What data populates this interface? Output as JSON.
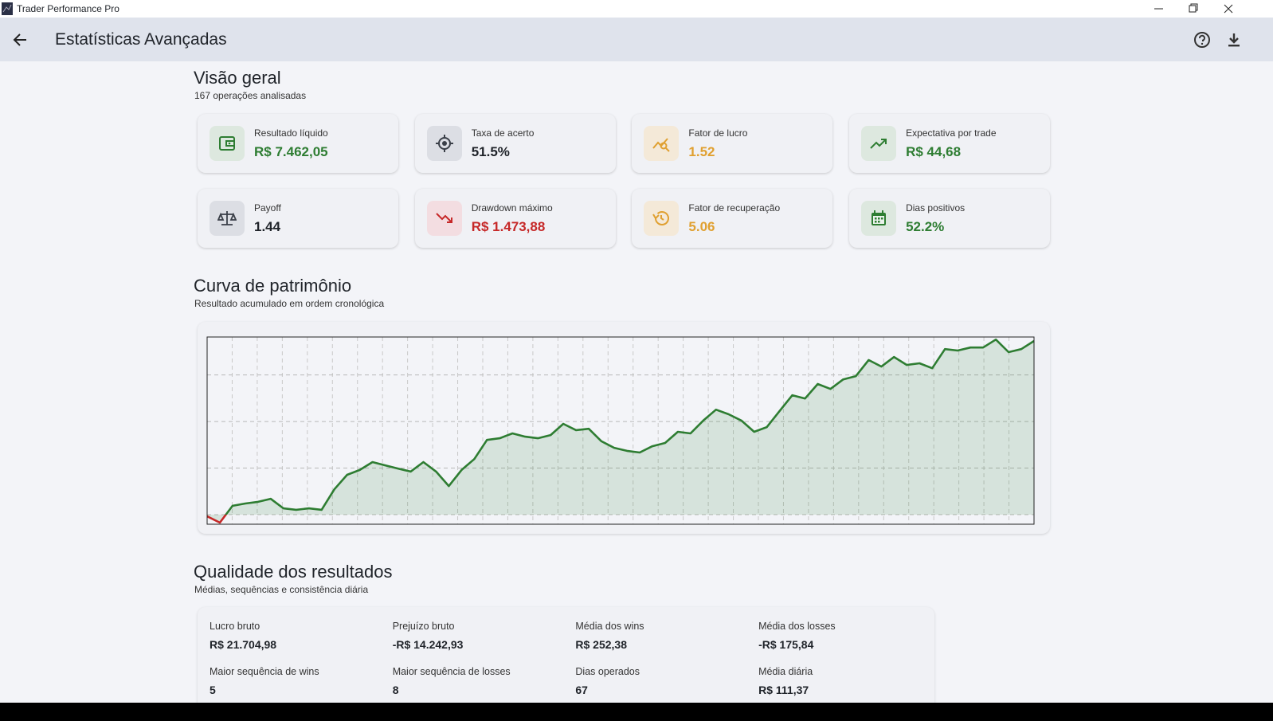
{
  "window": {
    "title": "Trader Performance Pro"
  },
  "appbar": {
    "title": "Estatísticas Avançadas"
  },
  "overview": {
    "title": "Visão geral",
    "subtitle": "167 operações analisadas",
    "cards": [
      {
        "label": "Resultado líquido",
        "value": "R$  7.462,05",
        "color": "#2e7d32",
        "icon": "wallet"
      },
      {
        "label": "Taxa de acerto",
        "value": "51.5%",
        "color": "#1f2329",
        "icon": "target"
      },
      {
        "label": "Fator de lucro",
        "value": "1.52",
        "color": "#e0a030",
        "icon": "insights"
      },
      {
        "label": "Expectativa por trade",
        "value": "R$  44,68",
        "color": "#2e7d32",
        "icon": "trend-up"
      },
      {
        "label": "Payoff",
        "value": "1.44",
        "color": "#1f2329",
        "icon": "scale"
      },
      {
        "label": "Drawdown máximo",
        "value": "R$  1.473,88",
        "color": "#c62828",
        "icon": "trend-down"
      },
      {
        "label": "Fator de recuperação",
        "value": "5.06",
        "color": "#e0a030",
        "icon": "history"
      },
      {
        "label": "Dias positivos",
        "value": "52.2%",
        "color": "#2e7d32",
        "icon": "calendar"
      }
    ]
  },
  "equity": {
    "title": "Curva de patrimônio",
    "subtitle": "Resultado acumulado em ordem cronológica",
    "chart_data": {
      "type": "line",
      "color": "#2e7d32",
      "negative_color": "#c62828",
      "values": [
        -70,
        -340,
        380,
        480,
        550,
        680,
        270,
        210,
        270,
        210,
        1090,
        1710,
        1920,
        2260,
        2120,
        1980,
        1850,
        2260,
        1850,
        1230,
        1920,
        2390,
        3210,
        3280,
        3490,
        3350,
        3280,
        3420,
        3900,
        3630,
        3690,
        3150,
        2870,
        2740,
        2670,
        2940,
        3080,
        3560,
        3490,
        4040,
        4510,
        4310,
        4040,
        3560,
        3760,
        4450,
        5130,
        4990,
        5610,
        5400,
        5810,
        5950,
        6640,
        6360,
        6770,
        6430,
        6500,
        6290,
        7110,
        7050,
        7180,
        7180,
        7520,
        6980,
        7110,
        7460
      ],
      "ylim": [
        -410,
        7630
      ],
      "yticks": [
        0,
        2000,
        4000,
        6000
      ],
      "grid": true,
      "xgrid_count": 33
    }
  },
  "quality": {
    "title": "Qualidade dos resultados",
    "subtitle": "Médias, sequências e consistência diária",
    "items": [
      {
        "label": "Lucro bruto",
        "value": "R$  21.704,98"
      },
      {
        "label": "Prejuízo bruto",
        "value": "-R$  14.242,93"
      },
      {
        "label": "Média dos wins",
        "value": "R$  252,38"
      },
      {
        "label": "Média dos losses",
        "value": "-R$  175,84"
      },
      {
        "label": "Maior sequência de wins",
        "value": "5"
      },
      {
        "label": "Maior sequência de losses",
        "value": "8"
      },
      {
        "label": "Dias operados",
        "value": "67"
      },
      {
        "label": "Média diária",
        "value": "R$  111,37"
      }
    ]
  }
}
